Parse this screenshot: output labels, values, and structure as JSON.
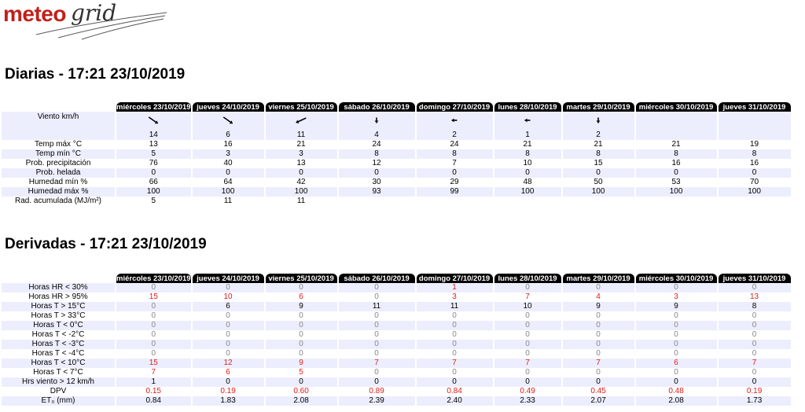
{
  "logo": {
    "part1": "meteo",
    "part2": "grid"
  },
  "daily": {
    "title": "Diarias - 17:21 23/10/2019",
    "days": [
      "miércoles 23/10/2019",
      "jueves 24/10/2019",
      "viernes 25/10/2019",
      "sábado 26/10/2019",
      "domingo 27/10/2019",
      "lunes 28/10/2019",
      "martes 29/10/2019",
      "miércoles 30/10/2019",
      "jueves 31/10/2019"
    ],
    "wind_label": "Viento km/h",
    "wind_speed": [
      "14",
      "6",
      "11",
      "4",
      "2",
      "1",
      "2",
      "",
      ""
    ],
    "wind_icons": [
      "arrow-down-right-icon",
      "arrow-down-right-icon",
      "arrow-down-left-icon",
      "arrow-down-icon",
      "arrow-left-icon",
      "arrow-left-icon",
      "arrow-down-icon",
      "",
      ""
    ],
    "rows": [
      {
        "label": "Temp máx °C",
        "values": [
          "13",
          "16",
          "21",
          "24",
          "24",
          "21",
          "21",
          "21",
          "19"
        ]
      },
      {
        "label": "Temp mín °C",
        "values": [
          "5",
          "3",
          "3",
          "8",
          "8",
          "8",
          "8",
          "8",
          "8"
        ]
      },
      {
        "label": "Prob. precipitación",
        "values": [
          "76",
          "40",
          "13",
          "12",
          "7",
          "10",
          "15",
          "16",
          "16"
        ]
      },
      {
        "label": "Prob. helada",
        "values": [
          "0",
          "0",
          "0",
          "0",
          "0",
          "0",
          "0",
          "0",
          "0"
        ]
      },
      {
        "label": "Humedad mín %",
        "values": [
          "66",
          "64",
          "42",
          "30",
          "29",
          "48",
          "50",
          "53",
          "70"
        ]
      },
      {
        "label": "Humedad máx %",
        "values": [
          "100",
          "100",
          "100",
          "93",
          "99",
          "100",
          "100",
          "100",
          "100"
        ]
      },
      {
        "label": "Rad. acumulada (MJ/m²)",
        "values": [
          "5",
          "11",
          "11",
          "",
          "",
          "",
          "",
          "",
          ""
        ]
      }
    ]
  },
  "derived": {
    "title": "Derivadas - 17:21 23/10/2019",
    "days": [
      "miércoles 23/10/2019",
      "jueves 24/10/2019",
      "viernes 25/10/2019",
      "sábado 26/10/2019",
      "domingo 27/10/2019",
      "lunes 28/10/2019",
      "martes 29/10/2019",
      "miércoles 30/10/2019",
      "jueves 31/10/2019"
    ],
    "rows": [
      {
        "label": "Horas HR < 30%",
        "values": [
          "0",
          "0",
          "0",
          "0",
          "1",
          "0",
          "0",
          "0",
          "0"
        ],
        "colors": [
          "g",
          "g",
          "g",
          "g",
          "r",
          "g",
          "g",
          "g",
          "g"
        ]
      },
      {
        "label": "Horas HR > 95%",
        "values": [
          "15",
          "10",
          "6",
          "0",
          "3",
          "7",
          "4",
          "3",
          "13"
        ],
        "colors": [
          "r",
          "r",
          "r",
          "g",
          "r",
          "r",
          "r",
          "r",
          "r"
        ]
      },
      {
        "label": "Horas T > 15°C",
        "values": [
          "0",
          "6",
          "9",
          "11",
          "11",
          "10",
          "9",
          "9",
          "8"
        ],
        "colors": [
          "g",
          "k",
          "k",
          "k",
          "k",
          "k",
          "k",
          "k",
          "k"
        ]
      },
      {
        "label": "Horas T > 33°C",
        "values": [
          "0",
          "0",
          "0",
          "0",
          "0",
          "0",
          "0",
          "0",
          "0"
        ],
        "colors": [
          "g",
          "g",
          "g",
          "g",
          "g",
          "g",
          "g",
          "g",
          "g"
        ]
      },
      {
        "label": "Horas T < 0°C",
        "values": [
          "0",
          "0",
          "0",
          "0",
          "0",
          "0",
          "0",
          "0",
          "0"
        ],
        "colors": [
          "g",
          "g",
          "g",
          "g",
          "g",
          "g",
          "g",
          "g",
          "g"
        ]
      },
      {
        "label": "Horas T < -2°C",
        "values": [
          "0",
          "0",
          "0",
          "0",
          "0",
          "0",
          "0",
          "0",
          "0"
        ],
        "colors": [
          "g",
          "g",
          "g",
          "g",
          "g",
          "g",
          "g",
          "g",
          "g"
        ]
      },
      {
        "label": "Horas T < -3°C",
        "values": [
          "0",
          "0",
          "0",
          "0",
          "0",
          "0",
          "0",
          "0",
          "0"
        ],
        "colors": [
          "g",
          "g",
          "g",
          "g",
          "g",
          "g",
          "g",
          "g",
          "g"
        ]
      },
      {
        "label": "Horas T < -4°C",
        "values": [
          "0",
          "0",
          "0",
          "0",
          "0",
          "0",
          "0",
          "0",
          "0"
        ],
        "colors": [
          "g",
          "g",
          "g",
          "g",
          "g",
          "g",
          "g",
          "g",
          "g"
        ]
      },
      {
        "label": "Horas T < 10°C",
        "values": [
          "15",
          "12",
          "9",
          "7",
          "7",
          "7",
          "7",
          "6",
          "7"
        ],
        "colors": [
          "r",
          "r",
          "r",
          "r",
          "r",
          "r",
          "r",
          "r",
          "r"
        ]
      },
      {
        "label": "Horas T < 7°C",
        "values": [
          "7",
          "6",
          "5",
          "0",
          "0",
          "0",
          "0",
          "0",
          "0"
        ],
        "colors": [
          "r",
          "r",
          "r",
          "g",
          "g",
          "g",
          "g",
          "g",
          "g"
        ]
      },
      {
        "label": "Hrs viento > 12 km/h",
        "values": [
          "1",
          "0",
          "0",
          "0",
          "0",
          "0",
          "0",
          "0",
          "0"
        ],
        "colors": [
          "k",
          "k",
          "k",
          "k",
          "k",
          "k",
          "k",
          "k",
          "k"
        ]
      },
      {
        "label": "DPV",
        "values": [
          "0.15",
          "0.19",
          "0.60",
          "0.89",
          "0.84",
          "0.49",
          "0.45",
          "0.48",
          "0.19"
        ],
        "colors": [
          "r",
          "r",
          "r",
          "r",
          "r",
          "r",
          "r",
          "r",
          "r"
        ]
      },
      {
        "label": "ET₀ (mm)",
        "values": [
          "0.84",
          "1.83",
          "2.08",
          "2.39",
          "2.40",
          "2.33",
          "2.07",
          "2.08",
          "1.73"
        ],
        "colors": [
          "k",
          "k",
          "k",
          "k",
          "k",
          "k",
          "k",
          "k",
          "k"
        ]
      }
    ]
  }
}
